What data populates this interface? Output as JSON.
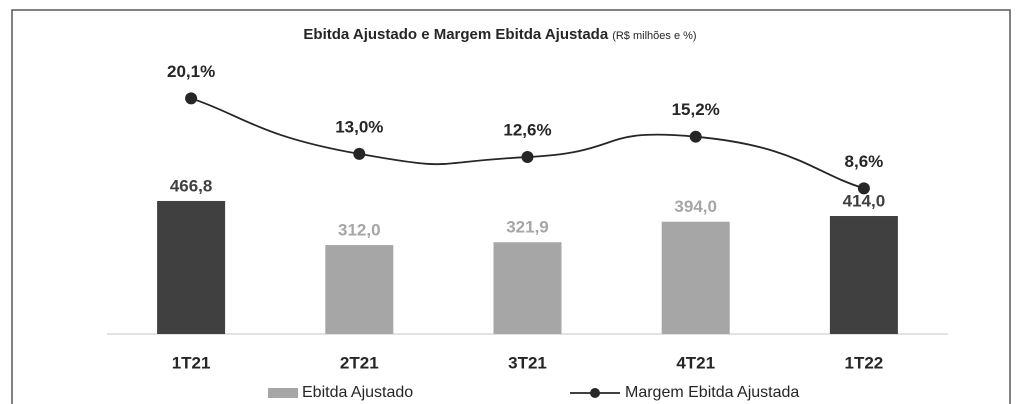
{
  "chart_data": {
    "type": "bar_line",
    "title": "Ebitda Ajustado e Margem Ebitda Ajustada",
    "subtitle": "(R$ milhões e %)",
    "categories": [
      "1T21",
      "2T21",
      "3T21",
      "4T21",
      "1T22"
    ],
    "series": [
      {
        "name": "Ebitda Ajustado",
        "type": "bar",
        "color": "#a6a6a6",
        "colors": [
          "#404040",
          "#a6a6a6",
          "#a6a6a6",
          "#a6a6a6",
          "#404040"
        ],
        "values": [
          466.8,
          312.0,
          321.9,
          394.0,
          414.0
        ],
        "value_labels": [
          "466,8",
          "312,0",
          "321,9",
          "394,0",
          "414,0"
        ]
      },
      {
        "name": "Margem Ebitda Ajustada",
        "type": "line",
        "axis": "y2",
        "color": "#262626",
        "values": [
          20.1,
          13.0,
          12.6,
          15.2,
          8.6
        ],
        "value_labels": [
          "20,1%",
          "13,0%",
          "12,6%",
          "15,2%",
          "8,6%"
        ]
      }
    ],
    "ylim": [
      0,
      1000
    ],
    "y2lim": [
      -10,
      26.4
    ]
  }
}
